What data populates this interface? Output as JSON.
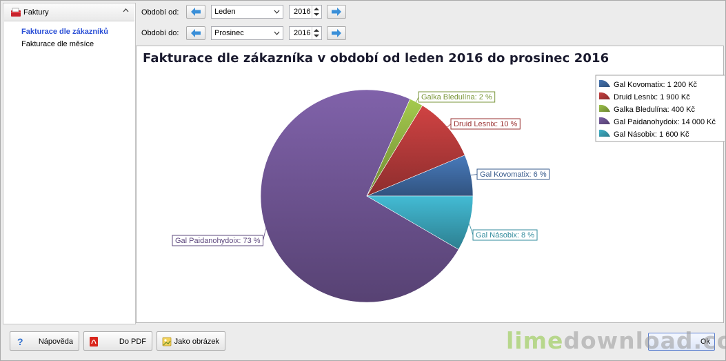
{
  "sidebar": {
    "header_title": "Faktury",
    "items": [
      {
        "label": "Fakturace dle zákazníků",
        "active": true
      },
      {
        "label": "Fakturace dle měsíce",
        "active": false
      }
    ]
  },
  "filters": {
    "from_label": "Období od:",
    "from_month": "Leden",
    "from_year": "2016",
    "to_label": "Období do:",
    "to_month": "Prosinec",
    "to_year": "2016"
  },
  "chart_title": "Fakturace dle zákazníka v období od leden 2016 do prosinec 2016",
  "chart_data": {
    "type": "pie",
    "title": "Fakturace dle zákazníka v období od leden 2016 do prosinec 2016",
    "legend_position": "top-right",
    "slices": [
      {
        "name": "Gal Kovomatix",
        "value": 1200,
        "percent": 6,
        "legend_label": "Gal Kovomatix: 1 200 Kč",
        "data_label": "Gal Kovomatix: 6 %",
        "color": "#3f6aa3"
      },
      {
        "name": "Druid Lesnix",
        "value": 1900,
        "percent": 10,
        "legend_label": "Druid Lesnix: 1 900 Kč",
        "data_label": "Druid Lesnix: 10 %",
        "color": "#b53a3a"
      },
      {
        "name": "Galka Bledulína",
        "value": 400,
        "percent": 2,
        "legend_label": "Galka Bledulína: 400 Kč",
        "data_label": "Galka Bledulína: 2 %",
        "color": "#8fb043"
      },
      {
        "name": "Gal Paidanohydoix",
        "value": 14000,
        "percent": 73,
        "legend_label": "Gal Paidanohydoix: 14 000 Kč",
        "data_label": "Gal Paidanohydoix: 73 %",
        "color": "#6f5594"
      },
      {
        "name": "Gal Násobix",
        "value": 1600,
        "percent": 8,
        "legend_label": "Gal Násobix: 1 600 Kč",
        "data_label": "Gal Násobix: 8 %",
        "color": "#3aa3b8"
      }
    ]
  },
  "footer": {
    "help_label": "Nápověda",
    "pdf_label": "Do PDF",
    "image_label": "Jako obrázek",
    "ok_label": "Ok"
  },
  "watermark": {
    "part1": "lime",
    "part2": "download.com"
  }
}
